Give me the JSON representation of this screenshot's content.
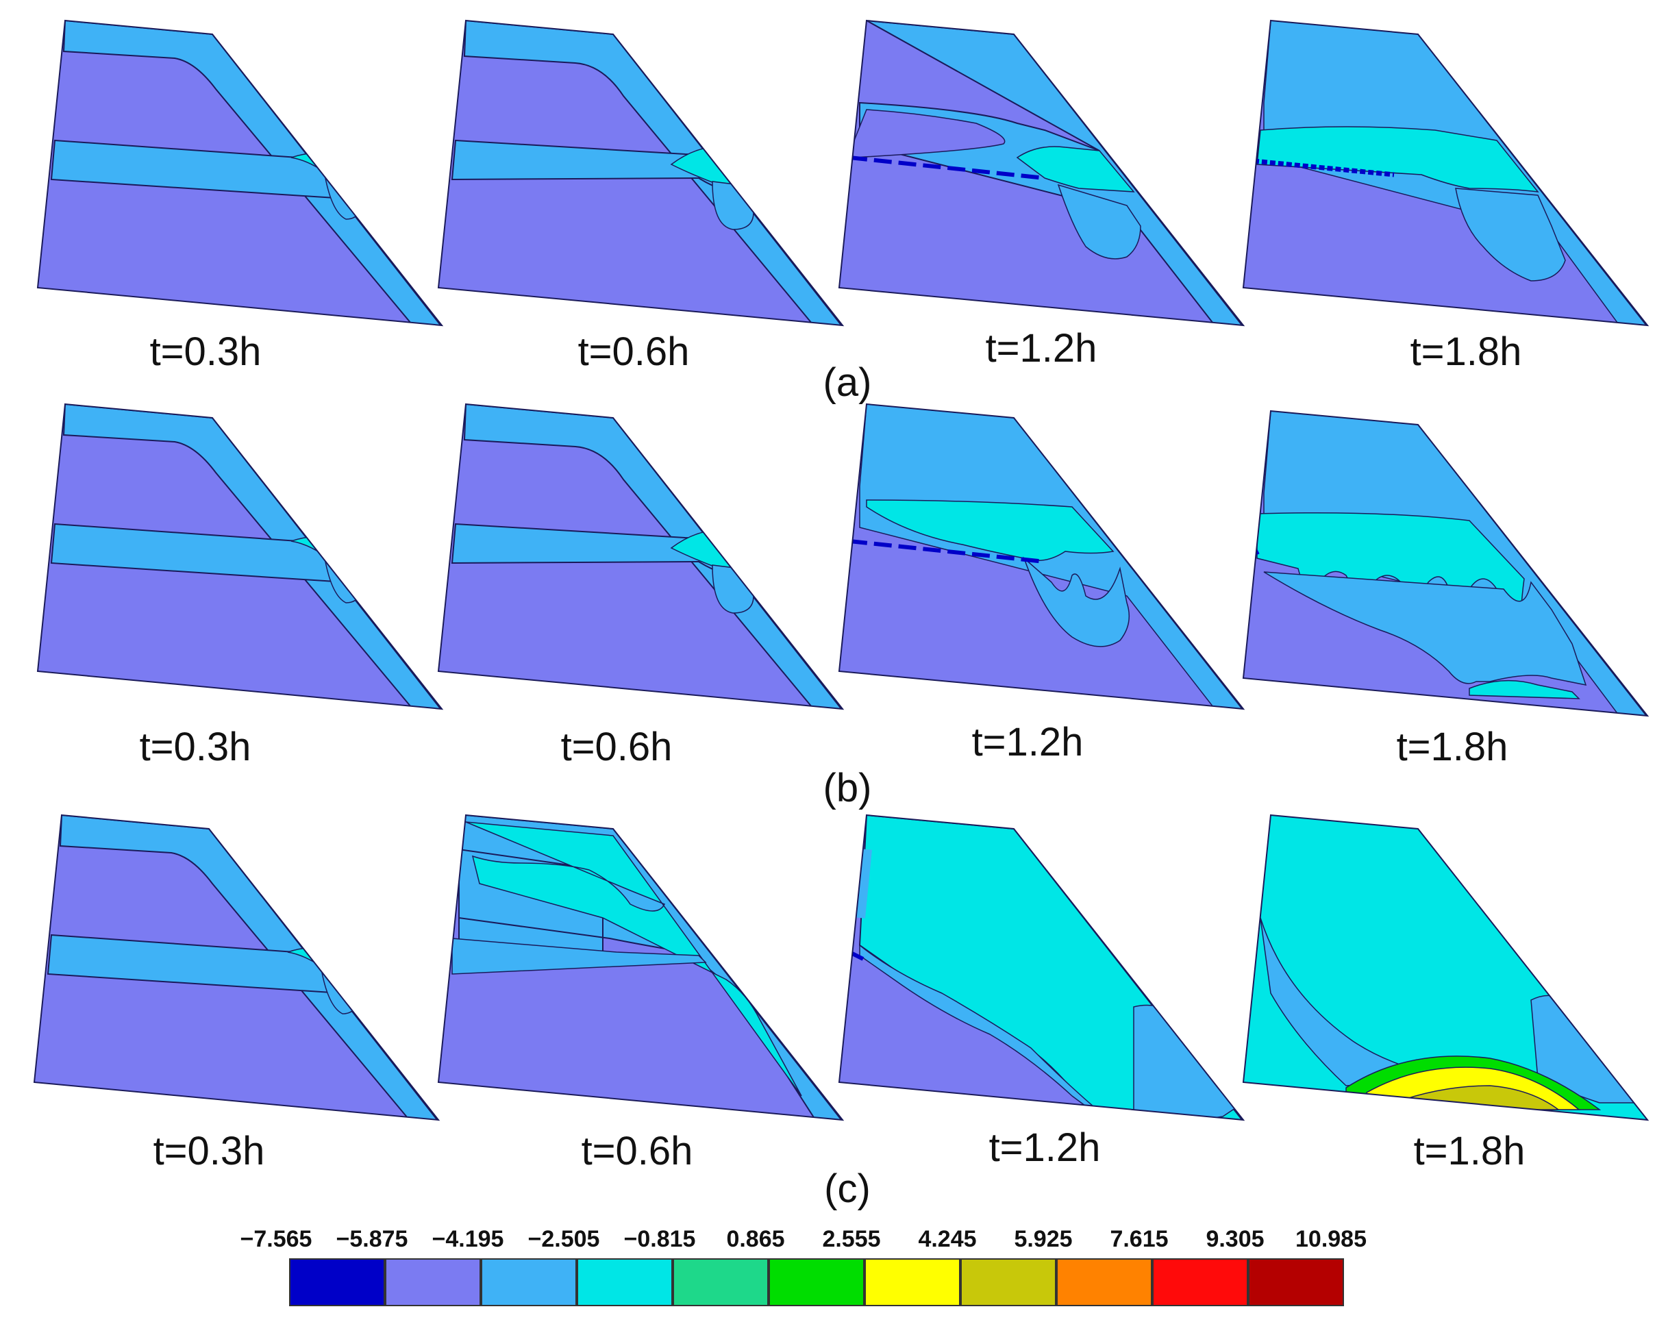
{
  "colors": {
    "c0": "#0000c8",
    "c1": "#7b7bf2",
    "c2": "#3fb2f6",
    "c3": "#00e6e6",
    "c4": "#1ed88a",
    "c5": "#00dd00",
    "c6": "#ffff00",
    "c7": "#c8c80a",
    "c8": "#ff8200",
    "c9": "#ff0a0a",
    "c10": "#b40000",
    "outline": "#1a1a5a"
  },
  "row_labels": [
    "(a)",
    "(b)",
    "(c)"
  ],
  "time_labels": [
    "t=0.3h",
    "t=0.6h",
    "t=1.2h",
    "t=1.8h"
  ],
  "colorbar": {
    "ticks": [
      "−7.565",
      "−5.875",
      "−4.195",
      "−2.505",
      "−0.815",
      "0.865",
      "2.555",
      "4.245",
      "5.925",
      "7.615",
      "9.305",
      "10.985"
    ],
    "fills": [
      "#0000c8",
      "#7b7bf2",
      "#3fb2f6",
      "#00e6e6",
      "#1ed88a",
      "#00dd00",
      "#ffff00",
      "#c8c80a",
      "#ff8200",
      "#ff0a0a",
      "#b40000"
    ]
  }
}
